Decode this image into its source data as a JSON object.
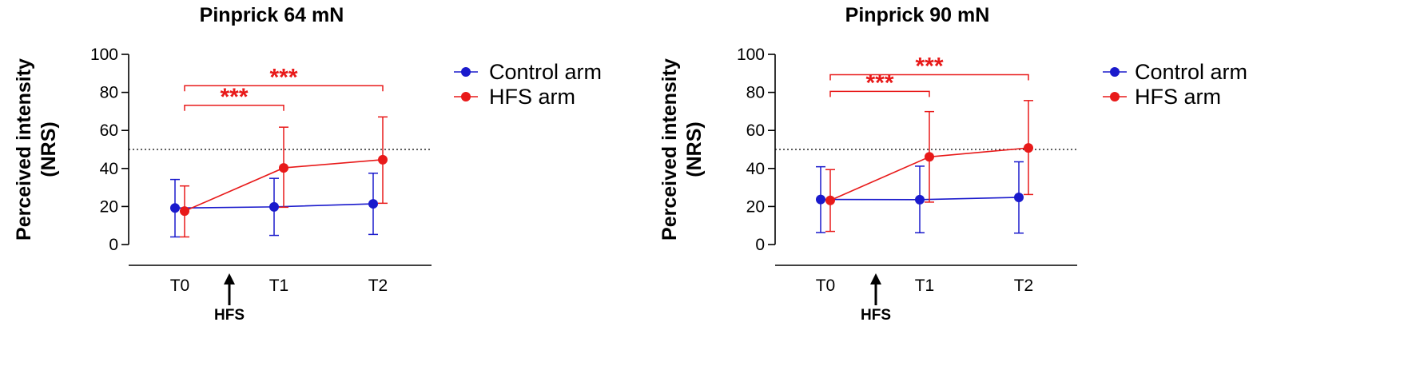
{
  "colors": {
    "control": "#1a1acc",
    "hfs": "#e81a1a",
    "axis": "#000000"
  },
  "legend_labels": {
    "control": "Control arm",
    "hfs": "HFS arm"
  },
  "chart_data": [
    {
      "type": "line",
      "title": "Pinprick 64 mN",
      "ylabel_line1": "Perceived intensity",
      "ylabel_line2": "(NRS)",
      "categories": [
        "T0",
        "T1",
        "T2"
      ],
      "yticks": [
        0,
        20,
        40,
        60,
        80,
        100
      ],
      "ylim": [
        0,
        100
      ],
      "reference_line": 50,
      "intervention_label": "HFS",
      "series": [
        {
          "name": "Control arm",
          "key": "control",
          "values": [
            19.2,
            19.8,
            21.4
          ],
          "err_low": [
            4,
            4.8,
            5.3
          ],
          "err_high": [
            34.2,
            34.8,
            37.5
          ]
        },
        {
          "name": "HFS arm",
          "key": "hfs",
          "values": [
            17.6,
            40.3,
            44.6
          ],
          "err_low": [
            4,
            19.6,
            21.7
          ],
          "err_high": [
            30.8,
            61.7,
            67.1
          ]
        }
      ],
      "significance": [
        {
          "from": "T0",
          "to": "T1",
          "stars": "***",
          "level": 73.2
        },
        {
          "from": "T0",
          "to": "T2",
          "stars": "***",
          "level": 83.5
        }
      ]
    },
    {
      "type": "line",
      "title": "Pinprick 90 mN",
      "ylabel_line1": "Perceived intensity",
      "ylabel_line2": "(NRS)",
      "categories": [
        "T0",
        "T1",
        "T2"
      ],
      "yticks": [
        0,
        20,
        40,
        60,
        80,
        100
      ],
      "ylim": [
        0,
        100
      ],
      "reference_line": 50,
      "intervention_label": "HFS",
      "series": [
        {
          "name": "Control arm",
          "key": "control",
          "values": [
            23.7,
            23.6,
            24.8
          ],
          "err_low": [
            6.3,
            6.2,
            6
          ],
          "err_high": [
            40.9,
            41.2,
            43.5
          ]
        },
        {
          "name": "HFS arm",
          "key": "hfs",
          "values": [
            23.2,
            46.1,
            50.8
          ],
          "err_low": [
            6.9,
            22.3,
            26.3
          ],
          "err_high": [
            39.4,
            69.9,
            75.7
          ]
        }
      ],
      "significance": [
        {
          "from": "T0",
          "to": "T1",
          "stars": "***",
          "level": 80.5
        },
        {
          "from": "T0",
          "to": "T2",
          "stars": "***",
          "level": 89.3
        }
      ]
    }
  ]
}
